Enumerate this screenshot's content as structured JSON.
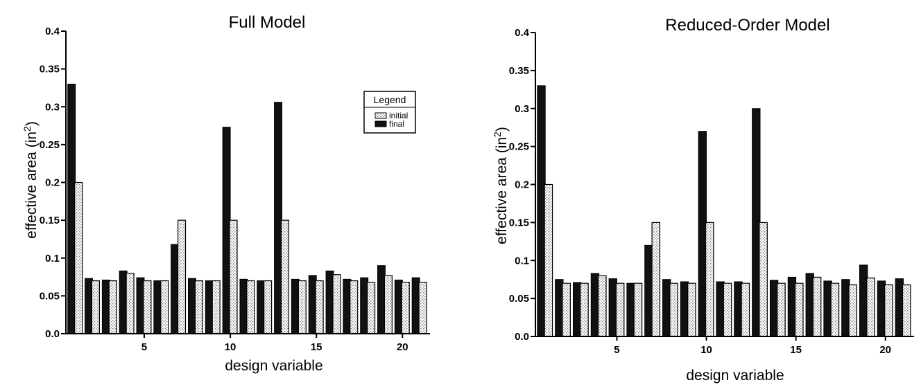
{
  "chart_data": [
    {
      "type": "bar",
      "title": "Full Model",
      "xlabel": "design variable",
      "ylabel_main": "effective area (in",
      "ylabel_sup": "2",
      "ylabel_close": ")",
      "ylim": [
        0,
        0.4
      ],
      "yticks": [
        "0.0",
        "0.05",
        "0.1",
        "0.15",
        "0.2",
        "0.25",
        "0.3",
        "0.35",
        "0.4"
      ],
      "xticks": [
        5,
        10,
        15,
        20
      ],
      "categories": [
        1,
        2,
        3,
        4,
        5,
        6,
        7,
        8,
        9,
        10,
        11,
        12,
        13,
        14,
        15,
        16,
        17,
        18,
        19,
        20,
        21
      ],
      "series": [
        {
          "name": "initial",
          "values": [
            0.2,
            0.07,
            0.07,
            0.08,
            0.07,
            0.07,
            0.15,
            0.07,
            0.07,
            0.15,
            0.07,
            0.07,
            0.15,
            0.07,
            0.07,
            0.078,
            0.07,
            0.068,
            0.077,
            0.068,
            0.068
          ]
        },
        {
          "name": "final",
          "values": [
            0.33,
            0.073,
            0.071,
            0.083,
            0.074,
            0.07,
            0.118,
            0.073,
            0.07,
            0.273,
            0.072,
            0.07,
            0.306,
            0.072,
            0.077,
            0.083,
            0.072,
            0.074,
            0.09,
            0.071,
            0.074
          ]
        }
      ],
      "legend": {
        "title": "Legend",
        "position": "top-right"
      }
    },
    {
      "type": "bar",
      "title": "Reduced-Order Model",
      "xlabel": "design variable",
      "ylabel_main": "effective area (in",
      "ylabel_sup": "2",
      "ylabel_close": ")",
      "ylim": [
        0,
        0.4
      ],
      "yticks": [
        "0.0",
        "0.05",
        "0.1",
        "0.15",
        "0.2",
        "0.25",
        "0.3",
        "0.35",
        "0.4"
      ],
      "xticks": [
        5,
        10,
        15,
        20
      ],
      "categories": [
        1,
        2,
        3,
        4,
        5,
        6,
        7,
        8,
        9,
        10,
        11,
        12,
        13,
        14,
        15,
        16,
        17,
        18,
        19,
        20,
        21
      ],
      "series": [
        {
          "name": "initial",
          "values": [
            0.2,
            0.07,
            0.07,
            0.08,
            0.07,
            0.07,
            0.15,
            0.07,
            0.07,
            0.15,
            0.07,
            0.07,
            0.15,
            0.07,
            0.07,
            0.078,
            0.07,
            0.068,
            0.077,
            0.068,
            0.068
          ]
        },
        {
          "name": "final",
          "values": [
            0.33,
            0.075,
            0.071,
            0.083,
            0.076,
            0.07,
            0.12,
            0.075,
            0.072,
            0.27,
            0.072,
            0.072,
            0.3,
            0.074,
            0.078,
            0.083,
            0.073,
            0.075,
            0.094,
            0.073,
            0.076
          ]
        }
      ]
    }
  ],
  "colors": {
    "initial_fill": "#ffffff",
    "initial_pattern": "#999999",
    "final_fill": "#111111"
  }
}
